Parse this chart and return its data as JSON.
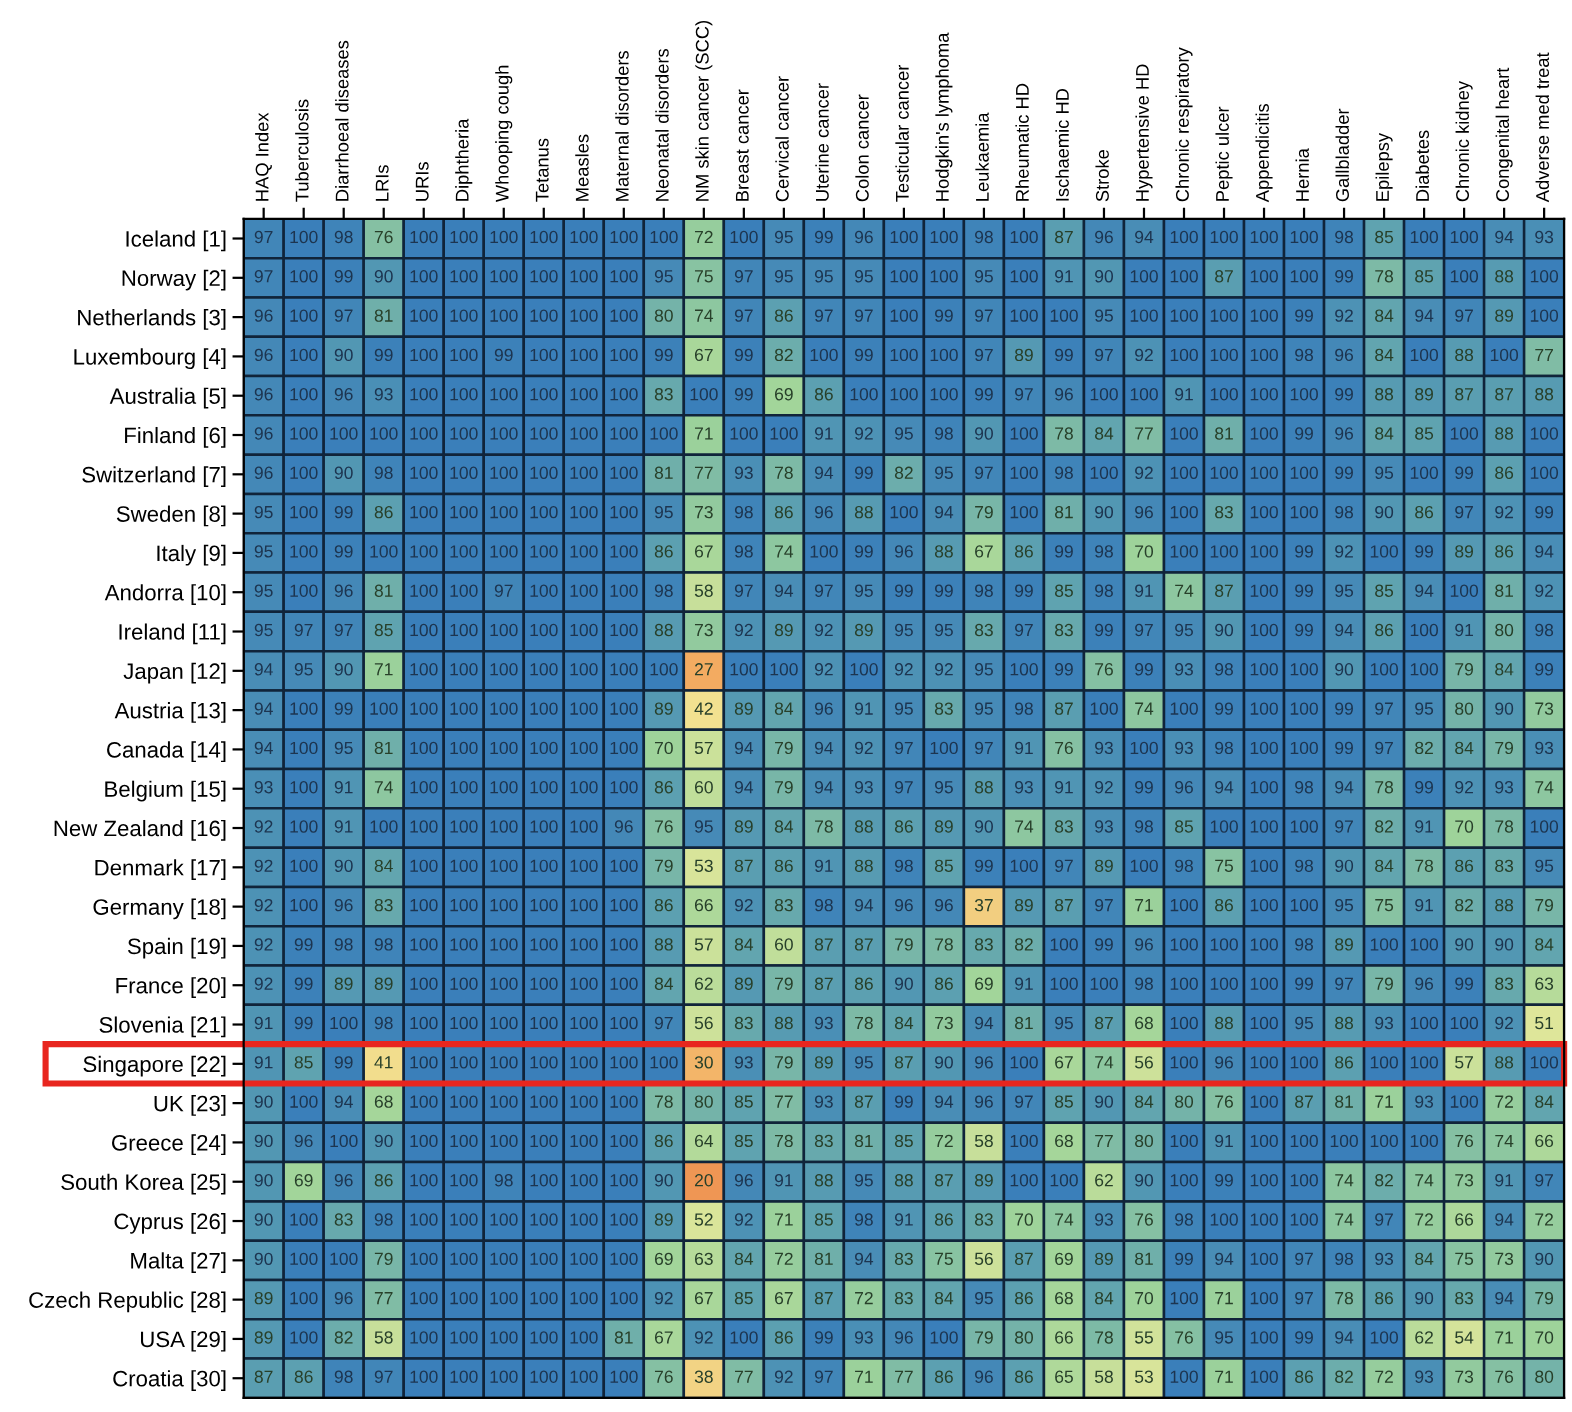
{
  "chart_data": {
    "type": "heatmap",
    "categories": [
      "HAQ Index",
      "Tuberculosis",
      "Diarrhoeal diseases",
      "LRIs",
      "URIs",
      "Diphtheria",
      "Whooping cough",
      "Tetanus",
      "Measles",
      "Maternal disorders",
      "Neonatal disorders",
      "NM skin cancer (SCC)",
      "Breast cancer",
      "Cervical cancer",
      "Uterine cancer",
      "Colon cancer",
      "Testicular cancer",
      "Hodgkin's lymphoma",
      "Leukaemia",
      "Rheumatic HD",
      "Ischaemic HD",
      "Stroke",
      "Hypertensive HD",
      "Chronic respiratory",
      "Peptic ulcer",
      "Appendicitis",
      "Hernia",
      "Gallbladder",
      "Epilepsy",
      "Diabetes",
      "Chronic kidney",
      "Congenital heart",
      "Adverse med treat"
    ],
    "y_categories": [
      "Iceland [1]",
      "Norway [2]",
      "Netherlands [3]",
      "Luxembourg [4]",
      "Australia [5]",
      "Finland [6]",
      "Switzerland [7]",
      "Sweden [8]",
      "Italy [9]",
      "Andorra [10]",
      "Ireland [11]",
      "Japan [12]",
      "Austria [13]",
      "Canada [14]",
      "Belgium [15]",
      "New Zealand [16]",
      "Denmark [17]",
      "Germany [18]",
      "Spain [19]",
      "France [20]",
      "Slovenia [21]",
      "Singapore [22]",
      "UK [23]",
      "Greece [24]",
      "South Korea [25]",
      "Cyprus [26]",
      "Malta [27]",
      "Czech Republic [28]",
      "USA [29]",
      "Croatia [30]"
    ],
    "cells": [
      [
        97,
        100,
        98,
        76,
        100,
        100,
        100,
        100,
        100,
        100,
        100,
        72,
        100,
        95,
        99,
        96,
        100,
        100,
        98,
        100,
        87,
        96,
        94,
        100,
        100,
        100,
        100,
        98,
        85,
        100,
        100,
        94,
        93
      ],
      [
        97,
        100,
        99,
        90,
        100,
        100,
        100,
        100,
        100,
        100,
        95,
        75,
        97,
        95,
        95,
        95,
        100,
        100,
        95,
        100,
        91,
        90,
        100,
        100,
        87,
        100,
        100,
        99,
        78,
        85,
        100,
        88,
        100
      ],
      [
        96,
        100,
        97,
        81,
        100,
        100,
        100,
        100,
        100,
        100,
        80,
        74,
        97,
        86,
        97,
        97,
        100,
        99,
        97,
        100,
        100,
        95,
        100,
        100,
        100,
        100,
        99,
        92,
        84,
        94,
        97,
        89,
        100
      ],
      [
        96,
        100,
        90,
        99,
        100,
        100,
        99,
        100,
        100,
        100,
        99,
        67,
        99,
        82,
        100,
        99,
        100,
        100,
        97,
        89,
        99,
        97,
        92,
        100,
        100,
        100,
        98,
        96,
        84,
        100,
        88,
        100,
        77
      ],
      [
        96,
        100,
        96,
        93,
        100,
        100,
        100,
        100,
        100,
        100,
        83,
        100,
        99,
        69,
        86,
        100,
        100,
        100,
        99,
        97,
        96,
        100,
        100,
        91,
        100,
        100,
        100,
        99,
        88,
        89,
        87,
        87,
        88
      ],
      [
        96,
        100,
        100,
        100,
        100,
        100,
        100,
        100,
        100,
        100,
        100,
        71,
        100,
        100,
        91,
        92,
        95,
        98,
        90,
        100,
        78,
        84,
        77,
        100,
        81,
        100,
        99,
        96,
        84,
        85,
        100,
        88,
        100
      ],
      [
        96,
        100,
        90,
        98,
        100,
        100,
        100,
        100,
        100,
        100,
        81,
        77,
        93,
        78,
        94,
        99,
        82,
        95,
        97,
        100,
        98,
        100,
        92,
        100,
        100,
        100,
        100,
        99,
        95,
        100,
        99,
        86,
        100
      ],
      [
        95,
        100,
        99,
        86,
        100,
        100,
        100,
        100,
        100,
        100,
        95,
        73,
        98,
        86,
        96,
        88,
        100,
        94,
        79,
        100,
        81,
        90,
        96,
        100,
        83,
        100,
        100,
        98,
        90,
        86,
        97,
        92,
        99
      ],
      [
        95,
        100,
        99,
        100,
        100,
        100,
        100,
        100,
        100,
        100,
        86,
        67,
        98,
        74,
        100,
        99,
        96,
        88,
        67,
        86,
        99,
        98,
        70,
        100,
        100,
        100,
        99,
        92,
        100,
        99,
        89,
        86,
        94
      ],
      [
        95,
        100,
        96,
        81,
        100,
        100,
        97,
        100,
        100,
        100,
        98,
        58,
        97,
        94,
        97,
        95,
        99,
        99,
        98,
        99,
        85,
        98,
        91,
        74,
        87,
        100,
        99,
        95,
        85,
        94,
        100,
        81,
        92
      ],
      [
        95,
        97,
        97,
        85,
        100,
        100,
        100,
        100,
        100,
        100,
        88,
        73,
        92,
        89,
        92,
        89,
        95,
        95,
        83,
        97,
        83,
        99,
        97,
        95,
        90,
        100,
        99,
        94,
        86,
        100,
        91,
        80,
        98
      ],
      [
        94,
        95,
        90,
        71,
        100,
        100,
        100,
        100,
        100,
        100,
        100,
        27,
        100,
        100,
        92,
        100,
        92,
        92,
        95,
        100,
        99,
        76,
        99,
        93,
        98,
        100,
        100,
        90,
        100,
        100,
        79,
        84,
        99
      ],
      [
        94,
        100,
        99,
        100,
        100,
        100,
        100,
        100,
        100,
        100,
        89,
        42,
        89,
        84,
        96,
        91,
        95,
        83,
        95,
        98,
        87,
        100,
        74,
        100,
        99,
        100,
        100,
        99,
        97,
        95,
        80,
        90,
        73
      ],
      [
        94,
        100,
        95,
        81,
        100,
        100,
        100,
        100,
        100,
        100,
        70,
        57,
        94,
        79,
        94,
        92,
        97,
        100,
        97,
        91,
        76,
        93,
        100,
        93,
        98,
        100,
        100,
        99,
        97,
        82,
        84,
        79,
        93
      ],
      [
        93,
        100,
        91,
        74,
        100,
        100,
        100,
        100,
        100,
        100,
        86,
        60,
        94,
        79,
        94,
        93,
        97,
        95,
        88,
        93,
        91,
        92,
        99,
        96,
        94,
        100,
        98,
        94,
        78,
        99,
        92,
        93,
        74
      ],
      [
        92,
        100,
        91,
        100,
        100,
        100,
        100,
        100,
        100,
        96,
        76,
        95,
        89,
        84,
        78,
        88,
        86,
        89,
        90,
        74,
        83,
        93,
        98,
        85,
        100,
        100,
        100,
        97,
        82,
        91,
        70,
        78,
        100
      ],
      [
        92,
        100,
        90,
        84,
        100,
        100,
        100,
        100,
        100,
        100,
        79,
        53,
        87,
        86,
        91,
        88,
        98,
        85,
        99,
        100,
        97,
        89,
        100,
        98,
        75,
        100,
        98,
        90,
        84,
        78,
        86,
        83,
        95
      ],
      [
        92,
        100,
        96,
        83,
        100,
        100,
        100,
        100,
        100,
        100,
        86,
        66,
        92,
        83,
        98,
        94,
        96,
        96,
        37,
        89,
        87,
        97,
        71,
        100,
        86,
        100,
        100,
        95,
        75,
        91,
        82,
        88,
        79
      ],
      [
        92,
        99,
        98,
        98,
        100,
        100,
        100,
        100,
        100,
        100,
        88,
        57,
        84,
        60,
        87,
        87,
        79,
        78,
        83,
        82,
        100,
        99,
        96,
        100,
        100,
        100,
        98,
        89,
        100,
        100,
        90,
        90,
        84
      ],
      [
        92,
        99,
        89,
        89,
        100,
        100,
        100,
        100,
        100,
        100,
        84,
        62,
        89,
        79,
        87,
        86,
        90,
        86,
        69,
        91,
        100,
        100,
        98,
        100,
        100,
        100,
        99,
        97,
        79,
        96,
        99,
        83,
        63
      ],
      [
        91,
        99,
        100,
        98,
        100,
        100,
        100,
        100,
        100,
        100,
        97,
        56,
        83,
        88,
        93,
        78,
        84,
        73,
        94,
        81,
        95,
        87,
        68,
        100,
        88,
        100,
        95,
        88,
        93,
        100,
        100,
        92,
        51
      ],
      [
        91,
        85,
        99,
        41,
        100,
        100,
        100,
        100,
        100,
        100,
        100,
        30,
        93,
        79,
        89,
        95,
        87,
        90,
        96,
        100,
        67,
        74,
        56,
        100,
        96,
        100,
        100,
        86,
        100,
        100,
        57,
        88,
        100
      ],
      [
        90,
        100,
        94,
        68,
        100,
        100,
        100,
        100,
        100,
        100,
        78,
        80,
        85,
        77,
        93,
        87,
        99,
        94,
        96,
        97,
        85,
        90,
        84,
        80,
        76,
        100,
        87,
        81,
        71,
        93,
        100,
        72,
        84
      ],
      [
        90,
        96,
        100,
        90,
        100,
        100,
        100,
        100,
        100,
        100,
        86,
        64,
        85,
        78,
        83,
        81,
        85,
        72,
        58,
        100,
        68,
        77,
        80,
        100,
        91,
        100,
        100,
        100,
        100,
        100,
        76,
        74,
        66
      ],
      [
        90,
        69,
        96,
        86,
        100,
        100,
        98,
        100,
        100,
        100,
        90,
        20,
        96,
        91,
        88,
        95,
        88,
        87,
        89,
        100,
        100,
        62,
        90,
        100,
        99,
        100,
        100,
        74,
        82,
        74,
        73,
        91,
        97
      ],
      [
        90,
        100,
        83,
        98,
        100,
        100,
        100,
        100,
        100,
        100,
        89,
        52,
        92,
        71,
        85,
        98,
        91,
        86,
        83,
        70,
        74,
        93,
        76,
        98,
        100,
        100,
        100,
        74,
        97,
        72,
        66,
        94,
        72
      ],
      [
        90,
        100,
        100,
        79,
        100,
        100,
        100,
        100,
        100,
        100,
        69,
        63,
        84,
        72,
        81,
        94,
        83,
        75,
        56,
        87,
        69,
        89,
        81,
        99,
        94,
        100,
        97,
        98,
        93,
        84,
        75,
        73,
        90
      ],
      [
        89,
        100,
        96,
        77,
        100,
        100,
        100,
        100,
        100,
        100,
        92,
        67,
        85,
        67,
        87,
        72,
        83,
        84,
        95,
        86,
        68,
        84,
        70,
        100,
        71,
        100,
        97,
        78,
        86,
        90,
        83,
        94,
        79
      ],
      [
        89,
        100,
        82,
        58,
        100,
        100,
        100,
        100,
        100,
        81,
        67,
        92,
        100,
        86,
        99,
        93,
        96,
        100,
        79,
        80,
        66,
        78,
        55,
        76,
        95,
        100,
        99,
        94,
        100,
        62,
        54,
        71,
        70
      ],
      [
        87,
        86,
        98,
        97,
        100,
        100,
        100,
        100,
        100,
        100,
        76,
        38,
        77,
        92,
        97,
        71,
        77,
        86,
        96,
        86,
        65,
        58,
        53,
        100,
        71,
        100,
        86,
        82,
        72,
        93,
        73,
        76,
        80
      ]
    ],
    "data_labels": true
  }
}
